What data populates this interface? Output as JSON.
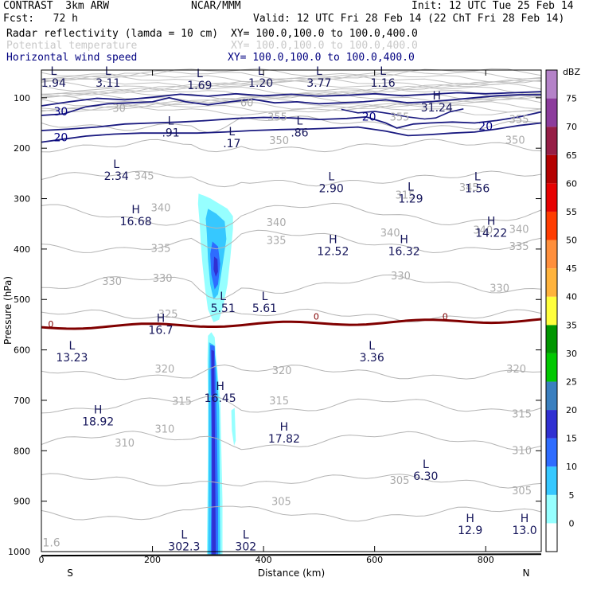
{
  "header": {
    "model": "CONTRAST  3km ARW",
    "org": "NCAR/MMM",
    "init": "Init: 12 UTC Tue 25 Feb 14",
    "fcst": "Fcst:   72 h",
    "valid": "Valid: 12 UTC Fri 28 Feb 14 (22 ChT Fri 28 Feb 14)",
    "fields": [
      {
        "name": "Radar reflectivity (lamda = 10 cm)",
        "xy": "XY= 100.0,100.0 to 100.0,400.0",
        "color": "#000000"
      },
      {
        "name": "Potential temperature",
        "xy": "XY= 100.0,100.0 to 100.0,400.0",
        "color": "#c8c8c8"
      },
      {
        "name": "Horizontal wind speed",
        "xy": "XY= 100.0,100.0 to 100.0,400.0",
        "color": "#000080"
      }
    ]
  },
  "chart_data": {
    "type": "cross-section",
    "xlabel": "Distance (km)",
    "ylabel": "Pressure (hPa)",
    "xlim": [
      0,
      900
    ],
    "ylim": [
      1000,
      45
    ],
    "x_ticks": [
      0,
      200,
      400,
      600,
      800
    ],
    "y_ticks": [
      100,
      200,
      300,
      400,
      500,
      600,
      700,
      800,
      900,
      1000
    ],
    "x_end_labels": {
      "left": "S",
      "right": "N"
    },
    "colorbar": {
      "unit": "dBZ",
      "levels": [
        0,
        5,
        10,
        15,
        20,
        25,
        30,
        35,
        40,
        45,
        50,
        55,
        60,
        65,
        70,
        75
      ],
      "colors": [
        "#ffffff",
        "#96ffff",
        "#36c8ff",
        "#2e6cff",
        "#3030d2",
        "#3a7fbf",
        "#00c800",
        "#009600",
        "#ffff3c",
        "#ffb33c",
        "#ff8f3c",
        "#ff3c00",
        "#e60000",
        "#b40000",
        "#961e46",
        "#8c3c9c",
        "#b482c8"
      ]
    },
    "theta_labels": [
      {
        "v": "30",
        "x": 140,
        "p": 128
      },
      {
        "v": "60",
        "x": 370,
        "p": 117
      },
      {
        "v": "355",
        "x": 425,
        "p": 145
      },
      {
        "v": "355",
        "x": 645,
        "p": 145
      },
      {
        "v": "355",
        "x": 860,
        "p": 150
      },
      {
        "v": "350",
        "x": 428,
        "p": 192
      },
      {
        "v": "350",
        "x": 853,
        "p": 191
      },
      {
        "v": "345",
        "x": 185,
        "p": 262
      },
      {
        "v": "340",
        "x": 215,
        "p": 325
      },
      {
        "v": "340",
        "x": 423,
        "p": 354
      },
      {
        "v": "340",
        "x": 628,
        "p": 375
      },
      {
        "v": "340",
        "x": 795,
        "p": 369
      },
      {
        "v": "340",
        "x": 860,
        "p": 368
      },
      {
        "v": "335",
        "x": 215,
        "p": 406
      },
      {
        "v": "335",
        "x": 423,
        "p": 390
      },
      {
        "v": "335",
        "x": 860,
        "p": 402
      },
      {
        "v": "330",
        "x": 127,
        "p": 471
      },
      {
        "v": "330",
        "x": 218,
        "p": 465
      },
      {
        "v": "330",
        "x": 647,
        "p": 460
      },
      {
        "v": "330",
        "x": 825,
        "p": 485
      },
      {
        "v": "325",
        "x": 228,
        "p": 536
      },
      {
        "v": "320",
        "x": 222,
        "p": 645
      },
      {
        "v": "320",
        "x": 433,
        "p": 648
      },
      {
        "v": "320",
        "x": 855,
        "p": 645
      },
      {
        "v": "315",
        "x": 253,
        "p": 709
      },
      {
        "v": "315",
        "x": 428,
        "p": 708
      },
      {
        "v": "315",
        "x": 865,
        "p": 734
      },
      {
        "v": "310",
        "x": 222,
        "p": 764
      },
      {
        "v": "310",
        "x": 150,
        "p": 792
      },
      {
        "v": "310",
        "x": 865,
        "p": 807
      },
      {
        "v": "305",
        "x": 645,
        "p": 866
      },
      {
        "v": "305",
        "x": 432,
        "p": 908
      },
      {
        "v": "305",
        "x": 865,
        "p": 886
      },
      {
        "v": "315",
        "x": 655,
        "p": 300
      },
      {
        "v": "345",
        "x": 770,
        "p": 285
      }
    ],
    "wind_labels": [
      {
        "v": "30",
        "x": 35,
        "p": 135
      },
      {
        "v": "20",
        "x": 590,
        "p": 145
      },
      {
        "v": "20",
        "x": 800,
        "p": 164
      },
      {
        "v": "20",
        "x": 35,
        "p": 186
      }
    ],
    "zero_labels": [
      {
        "v": "0",
        "x": 17,
        "p": 555
      },
      {
        "v": "0",
        "x": 495,
        "p": 540
      },
      {
        "v": "0",
        "x": 727,
        "p": 540
      }
    ],
    "extrema": [
      {
        "t": "L",
        "v": "1.94",
        "x": 22,
        "p": 78
      },
      {
        "t": "L",
        "v": "3.11",
        "x": 120,
        "p": 78
      },
      {
        "t": "L",
        "v": "1.69",
        "x": 285,
        "p": 83
      },
      {
        "t": "L",
        "v": "1.20",
        "x": 395,
        "p": 78
      },
      {
        "t": "L",
        "v": "3.77",
        "x": 500,
        "p": 78
      },
      {
        "t": "L",
        "v": "1.16",
        "x": 615,
        "p": 78
      },
      {
        "t": "H",
        "v": "31.24",
        "x": 712,
        "p": 127
      },
      {
        "t": "L",
        "v": ".91",
        "x": 233,
        "p": 177
      },
      {
        "t": "L",
        "v": ".17",
        "x": 343,
        "p": 198
      },
      {
        "t": "L",
        "v": ".86",
        "x": 465,
        "p": 177
      },
      {
        "t": "L",
        "v": "2.34",
        "x": 135,
        "p": 263
      },
      {
        "t": "L",
        "v": "2.90",
        "x": 522,
        "p": 287
      },
      {
        "t": "L",
        "v": "1.29",
        "x": 665,
        "p": 308
      },
      {
        "t": "L",
        "v": "1.56",
        "x": 785,
        "p": 287
      },
      {
        "t": "H",
        "v": "16.68",
        "x": 170,
        "p": 353
      },
      {
        "t": "H",
        "v": "14.22",
        "x": 810,
        "p": 376
      },
      {
        "t": "H",
        "v": "12.52",
        "x": 525,
        "p": 412
      },
      {
        "t": "H",
        "v": "16.32",
        "x": 653,
        "p": 412
      },
      {
        "t": "L",
        "v": "5.51",
        "x": 327,
        "p": 525
      },
      {
        "t": "L",
        "v": "5.61",
        "x": 402,
        "p": 525
      },
      {
        "t": "H",
        "v": "16.7",
        "x": 215,
        "p": 568
      },
      {
        "t": "L",
        "v": "13.23",
        "x": 55,
        "p": 623
      },
      {
        "t": "L",
        "v": "3.36",
        "x": 595,
        "p": 623
      },
      {
        "t": "H",
        "v": "16.45",
        "x": 322,
        "p": 703
      },
      {
        "t": "H",
        "v": "18.92",
        "x": 102,
        "p": 750
      },
      {
        "t": "H",
        "v": "17.82",
        "x": 437,
        "p": 784
      },
      {
        "t": "L",
        "v": "6.30",
        "x": 692,
        "p": 858
      },
      {
        "t": "H",
        "v": "12.9",
        "x": 772,
        "p": 965
      },
      {
        "t": "H",
        "v": "13.0",
        "x": 870,
        "p": 965
      },
      {
        "t": "L",
        "v": "302.3",
        "x": 257,
        "p": 998
      },
      {
        "t": "L",
        "v": "302",
        "x": 368,
        "p": 998
      },
      {
        "t": "",
        "v": "1.6",
        "x": 18,
        "p": 990
      }
    ]
  }
}
